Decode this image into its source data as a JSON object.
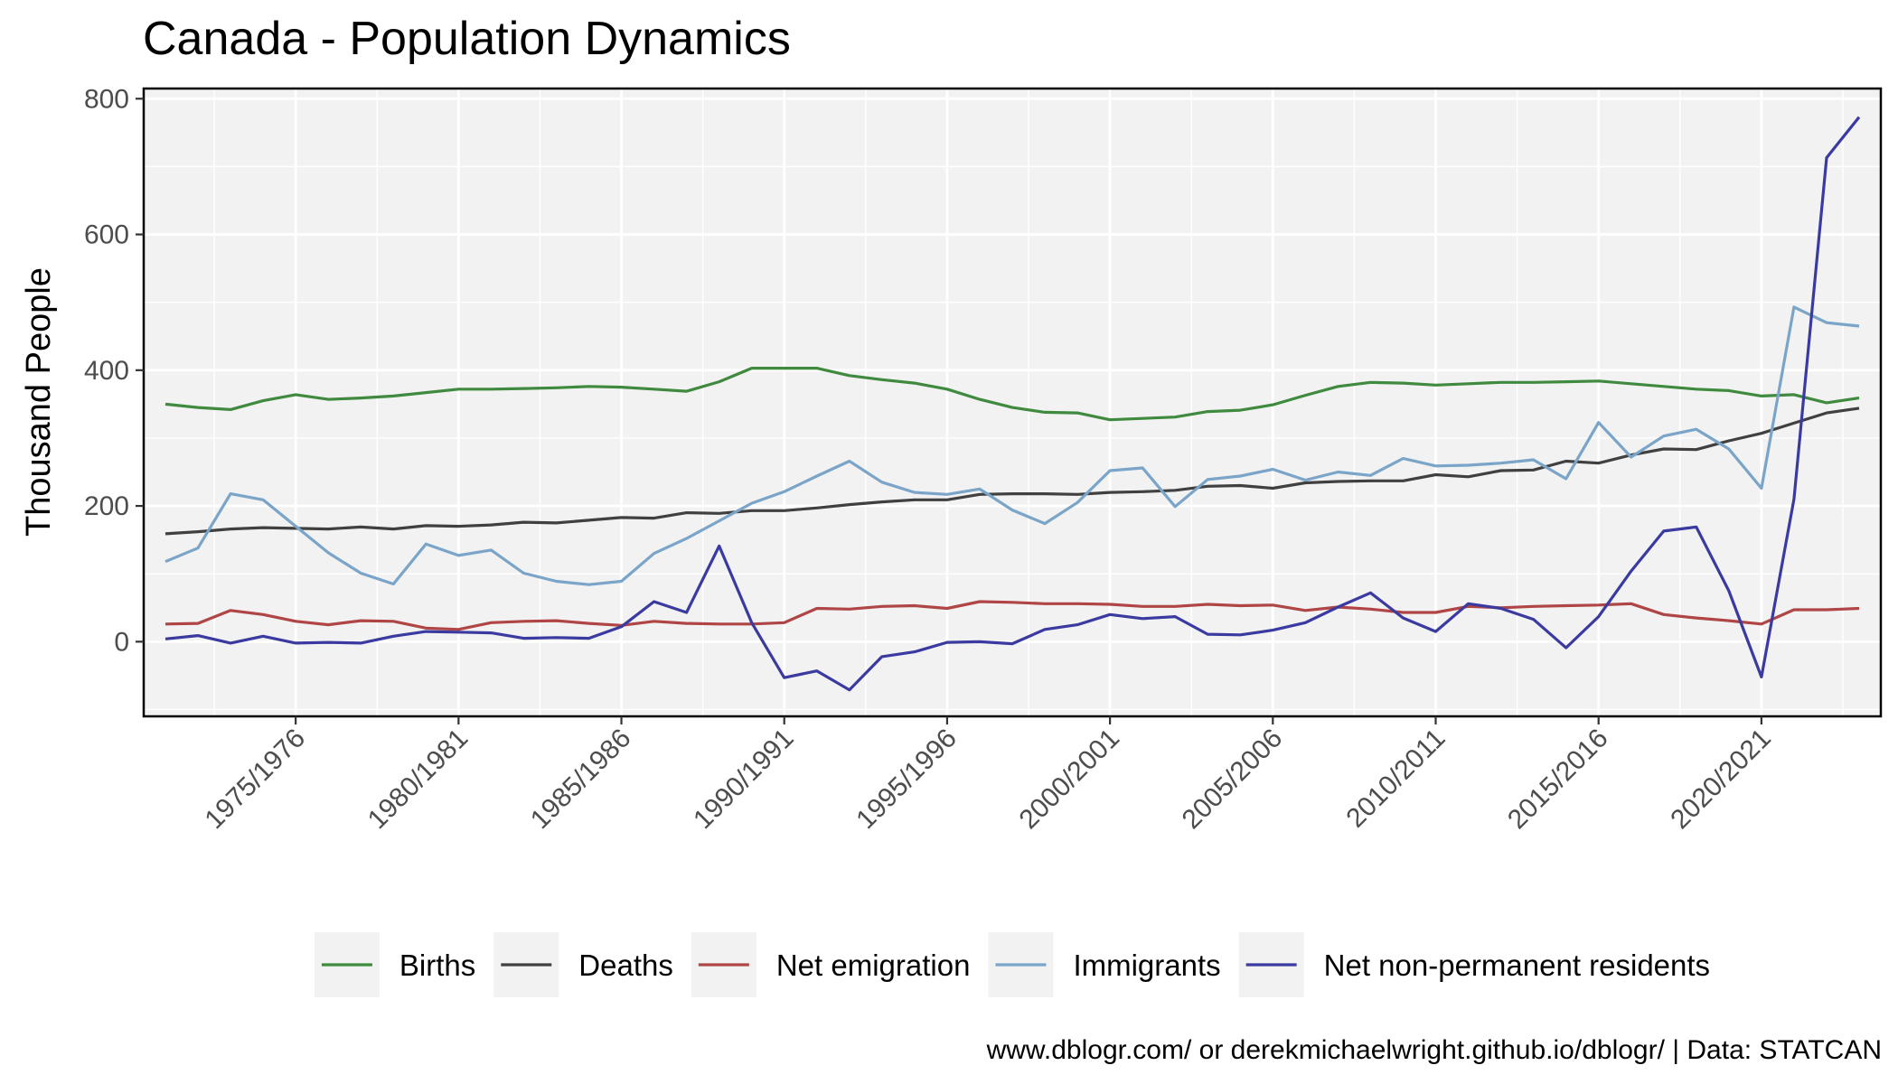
{
  "chart_data": {
    "type": "line",
    "title": "Canada - Population Dynamics",
    "ylabel": "Thousand People",
    "xlabel": "",
    "caption": "www.dblogr.com/ or derekmichaelwright.github.io/dblogr/ | Data: STATCAN",
    "x_start_year": 1971,
    "x_tick_labels": [
      "1975/1976",
      "1980/1981",
      "1985/1986",
      "1990/1991",
      "1995/1996",
      "2000/2001",
      "2005/2006",
      "2010/2011",
      "2015/2016",
      "2020/2021"
    ],
    "x_tick_years": [
      1975,
      1980,
      1985,
      1990,
      1995,
      2000,
      2005,
      2010,
      2015,
      2020
    ],
    "ylim": [
      -110,
      815
    ],
    "y_ticks": [
      0,
      200,
      400,
      600,
      800
    ],
    "grid": true,
    "legend_position": "bottom",
    "series": [
      {
        "name": "Births",
        "color": "#3f8a3f",
        "values": [
          350,
          345,
          342,
          355,
          364,
          357,
          359,
          362,
          367,
          372,
          372,
          373,
          374,
          376,
          375,
          372,
          369,
          383,
          403,
          403,
          403,
          392,
          386,
          381,
          372,
          357,
          345,
          338,
          337,
          327,
          329,
          331,
          339,
          341,
          349,
          363,
          376,
          382,
          381,
          378,
          380,
          382,
          382,
          383,
          384,
          380,
          376,
          372,
          370,
          362,
          364,
          352,
          359
        ]
      },
      {
        "name": "Deaths",
        "color": "#404040",
        "values": [
          159,
          162,
          166,
          168,
          167,
          166,
          169,
          166,
          171,
          170,
          172,
          176,
          175,
          179,
          183,
          182,
          190,
          189,
          193,
          193,
          197,
          202,
          206,
          209,
          209,
          217,
          218,
          218,
          217,
          220,
          221,
          223,
          229,
          230,
          226,
          234,
          236,
          237,
          237,
          246,
          243,
          252,
          253,
          266,
          263,
          275,
          284,
          283,
          296,
          307,
          322,
          337,
          344
        ]
      },
      {
        "name": "Net emigration",
        "color": "#b04545",
        "values": [
          26,
          27,
          46,
          40,
          30,
          25,
          31,
          30,
          20,
          18,
          28,
          30,
          31,
          27,
          24,
          30,
          27,
          26,
          26,
          28,
          49,
          48,
          52,
          53,
          49,
          59,
          58,
          56,
          56,
          55,
          52,
          52,
          55,
          53,
          54,
          46,
          51,
          48,
          43,
          43,
          52,
          50,
          52,
          53,
          54,
          56,
          40,
          35,
          31,
          26,
          47,
          47,
          49
        ]
      },
      {
        "name": "Immigrants",
        "color": "#7aa4c8",
        "values": [
          118,
          138,
          218,
          209,
          170,
          131,
          101,
          85,
          144,
          127,
          135,
          101,
          89,
          84,
          89,
          130,
          152,
          178,
          204,
          221,
          244,
          266,
          235,
          220,
          217,
          225,
          194,
          174,
          205,
          252,
          256,
          199,
          239,
          244,
          254,
          238,
          250,
          245,
          270,
          259,
          260,
          263,
          268,
          240,
          323,
          272,
          303,
          313,
          284,
          226,
          493,
          470,
          465
        ]
      },
      {
        "name": "Net non-permanent residents",
        "color": "#3a3aa0",
        "values": [
          4,
          9,
          -2,
          8,
          -2,
          -1,
          -2,
          8,
          15,
          14,
          13,
          5,
          6,
          5,
          22,
          59,
          43,
          141,
          28,
          -53,
          -43,
          -71,
          -22,
          -15,
          -1,
          0,
          -3,
          18,
          25,
          40,
          34,
          37,
          11,
          10,
          17,
          28,
          51,
          72,
          35,
          15,
          56,
          49,
          33,
          -9,
          37,
          104,
          163,
          169,
          75,
          -52,
          210,
          713,
          773
        ]
      }
    ]
  }
}
